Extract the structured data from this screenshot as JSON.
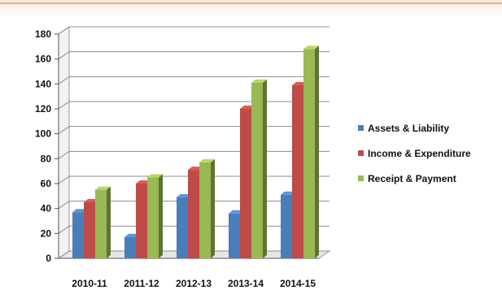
{
  "chart_data": {
    "type": "bar",
    "style": "3d-clustered-column",
    "categories": [
      "2010-11",
      "2011-12",
      "2012-13",
      "2013-14",
      "2014-15"
    ],
    "series": [
      {
        "name": "Assets & Liability",
        "color": "#4a7ebb",
        "values": [
          37,
          17,
          49,
          36,
          51
        ]
      },
      {
        "name": "Income & Expenditure",
        "color": "#be4b48",
        "values": [
          45,
          60,
          71,
          120,
          139
        ]
      },
      {
        "name": "Receipt & Payment",
        "color": "#98b954",
        "values": [
          55,
          65,
          77,
          141,
          168
        ]
      }
    ],
    "ylim": [
      0,
      180
    ],
    "yticks": [
      0,
      20,
      40,
      60,
      80,
      100,
      120,
      140,
      160,
      180
    ],
    "grid": true,
    "legend_position": "right",
    "title": "",
    "xlabel": "",
    "ylabel": ""
  }
}
